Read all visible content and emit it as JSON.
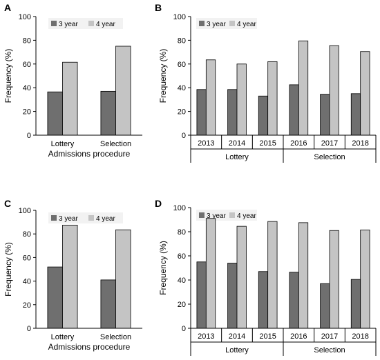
{
  "colors": {
    "series_3year": "#6f6f6f",
    "series_4year": "#c4c4c4",
    "axis": "#000000",
    "legend_bg": "#f2f2f2"
  },
  "chart_data": [
    {
      "panel": "A",
      "type": "bar",
      "categories": [
        "Lottery",
        "Selection"
      ],
      "series": [
        {
          "name": "3 year",
          "values": [
            36.5,
            37
          ]
        },
        {
          "name": "4 year",
          "values": [
            61.5,
            75
          ]
        }
      ],
      "xlabel": "Admissions procedure",
      "ylabel": "Frequency (%)",
      "ylim": [
        0,
        100
      ],
      "yticks": [
        "0",
        "20",
        "40",
        "60",
        "80",
        "100"
      ],
      "grid": false,
      "legend": "top"
    },
    {
      "panel": "B",
      "type": "bar",
      "categories": [
        "2013",
        "2014",
        "2015",
        "2016",
        "2017",
        "2018"
      ],
      "groups": [
        "Lottery",
        "Selection"
      ],
      "series": [
        {
          "name": "3 year",
          "values": [
            38.5,
            38.5,
            33,
            42.5,
            34.5,
            35
          ]
        },
        {
          "name": "4 year",
          "values": [
            63.5,
            60,
            62,
            79.5,
            75.5,
            70.5
          ]
        }
      ],
      "xlabel": "",
      "ylabel": "Frequency (%)",
      "ylim": [
        0,
        100
      ],
      "yticks": [
        "0",
        "20",
        "40",
        "60",
        "80",
        "100"
      ],
      "grid": false,
      "legend": "top"
    },
    {
      "panel": "C",
      "type": "bar",
      "categories": [
        "Lottery",
        "Selection"
      ],
      "series": [
        {
          "name": "3 year",
          "values": [
            52,
            41
          ]
        },
        {
          "name": "4 year",
          "values": [
            87.5,
            83.5
          ]
        }
      ],
      "xlabel": "Admissions procedure",
      "ylabel": "Frequency (%)",
      "ylim": [
        0,
        100
      ],
      "yticks": [
        "0",
        "20",
        "40",
        "60",
        "80",
        "100"
      ],
      "grid": false,
      "legend": "top"
    },
    {
      "panel": "D",
      "type": "bar",
      "categories": [
        "2013",
        "2014",
        "2015",
        "2016",
        "2017",
        "2018"
      ],
      "groups": [
        "Lottery",
        "Selection"
      ],
      "series": [
        {
          "name": "3 year",
          "values": [
            55,
            54,
            47,
            46.5,
            37,
            40.5
          ]
        },
        {
          "name": "4 year",
          "values": [
            91,
            84.5,
            88.5,
            87.5,
            81,
            81.5
          ]
        }
      ],
      "xlabel": "",
      "ylabel": "Frequency (%)",
      "ylim": [
        0,
        100
      ],
      "yticks": [
        "0",
        "20",
        "40",
        "60",
        "80",
        "100"
      ],
      "grid": false,
      "legend": "top"
    }
  ]
}
